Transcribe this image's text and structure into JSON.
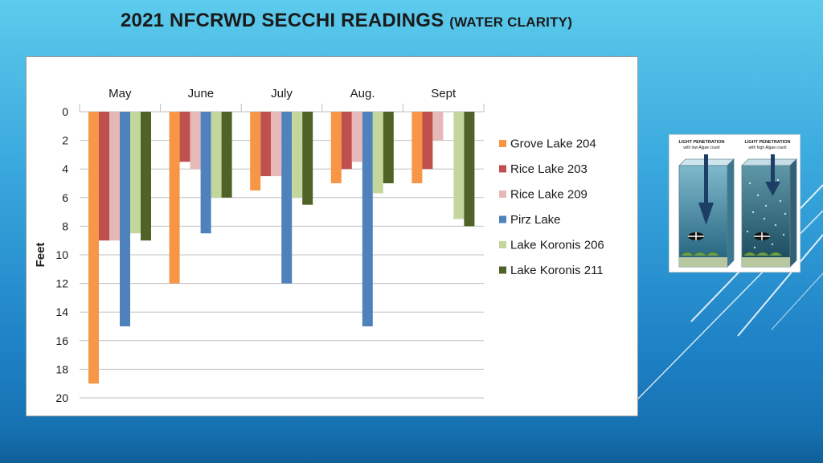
{
  "slide": {
    "title_main": "2021 NFCRWD SECCHI READINGS",
    "title_sub": "(WATER CLARITY)"
  },
  "inset": {
    "left_label_1": "LIGHT PENETRATION",
    "left_label_2": "with low Algae count",
    "right_label_1": "LIGHT PENETRATION",
    "right_label_2": "with high Algae count"
  },
  "colors": {
    "grove_lake_204": "#f79646",
    "rice_lake_203": "#c0504d",
    "rice_lake_209": "#e6b9b8",
    "pirz_lake": "#4f81bd",
    "lake_koronis_206": "#c3d69b",
    "lake_koronis_211": "#4f6228"
  },
  "chart_data": {
    "type": "bar",
    "orientation": "vertical-downward",
    "title": "",
    "xlabel": "",
    "ylabel": "Feet",
    "ylim": [
      0,
      20
    ],
    "y_reversed": true,
    "y_ticks": [
      0,
      2,
      4,
      6,
      8,
      10,
      12,
      14,
      16,
      18,
      20
    ],
    "x_axis_position": "top",
    "categories": [
      "May",
      "June",
      "July",
      "Aug.",
      "Sept"
    ],
    "grid": true,
    "legend_position": "right",
    "series": [
      {
        "name": "Grove Lake 204",
        "color": "#f79646",
        "values": [
          19,
          12,
          5.5,
          5,
          5
        ]
      },
      {
        "name": "Rice Lake 203",
        "color": "#c0504d",
        "values": [
          9,
          3.5,
          4.5,
          4,
          4
        ]
      },
      {
        "name": "Rice Lake 209",
        "color": "#e6b9b8",
        "values": [
          9,
          4,
          4.5,
          3.5,
          2
        ]
      },
      {
        "name": "Pirz Lake",
        "color": "#4f81bd",
        "values": [
          15,
          8.5,
          12,
          15,
          null
        ]
      },
      {
        "name": "Lake Koronis 206",
        "color": "#c3d69b",
        "values": [
          8.5,
          6,
          6,
          5.7,
          7.5
        ]
      },
      {
        "name": "Lake Koronis 211",
        "color": "#4f6228",
        "values": [
          9,
          6,
          6.5,
          5,
          8
        ]
      }
    ]
  }
}
